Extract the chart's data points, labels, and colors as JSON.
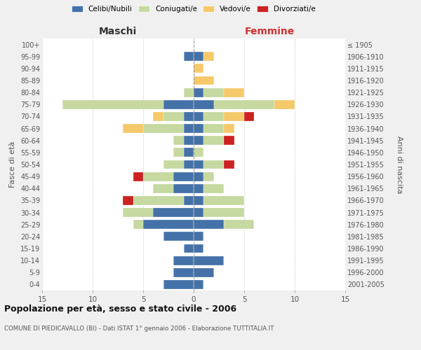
{
  "age_groups": [
    "0-4",
    "5-9",
    "10-14",
    "15-19",
    "20-24",
    "25-29",
    "30-34",
    "35-39",
    "40-44",
    "45-49",
    "50-54",
    "55-59",
    "60-64",
    "65-69",
    "70-74",
    "75-79",
    "80-84",
    "85-89",
    "90-94",
    "95-99",
    "100+"
  ],
  "birth_years": [
    "2001-2005",
    "1996-2000",
    "1991-1995",
    "1986-1990",
    "1981-1985",
    "1976-1980",
    "1971-1975",
    "1966-1970",
    "1961-1965",
    "1956-1960",
    "1951-1955",
    "1946-1950",
    "1941-1945",
    "1936-1940",
    "1931-1935",
    "1926-1930",
    "1921-1925",
    "1916-1920",
    "1911-1915",
    "1906-1910",
    "≤ 1905"
  ],
  "maschi": {
    "celibi": [
      3,
      2,
      2,
      1,
      3,
      5,
      4,
      1,
      2,
      2,
      1,
      1,
      1,
      1,
      1,
      3,
      0,
      0,
      0,
      1,
      0
    ],
    "coniugati": [
      0,
      0,
      0,
      0,
      0,
      1,
      3,
      5,
      2,
      3,
      2,
      1,
      1,
      4,
      2,
      10,
      1,
      0,
      0,
      0,
      0
    ],
    "vedovi": [
      0,
      0,
      0,
      0,
      0,
      0,
      0,
      0,
      0,
      0,
      0,
      0,
      0,
      2,
      1,
      0,
      0,
      0,
      0,
      0,
      0
    ],
    "divorziati": [
      0,
      0,
      0,
      0,
      0,
      0,
      0,
      1,
      0,
      1,
      0,
      0,
      0,
      0,
      0,
      0,
      0,
      0,
      0,
      0,
      0
    ]
  },
  "femmine": {
    "nubili": [
      1,
      2,
      3,
      1,
      1,
      3,
      1,
      1,
      1,
      1,
      1,
      0,
      1,
      1,
      1,
      2,
      1,
      0,
      0,
      1,
      0
    ],
    "coniugate": [
      0,
      0,
      0,
      0,
      0,
      3,
      4,
      4,
      2,
      1,
      2,
      1,
      2,
      2,
      2,
      6,
      2,
      0,
      0,
      0,
      0
    ],
    "vedove": [
      0,
      0,
      0,
      0,
      0,
      0,
      0,
      0,
      0,
      0,
      0,
      0,
      0,
      1,
      2,
      2,
      2,
      2,
      1,
      1,
      0
    ],
    "divorziate": [
      0,
      0,
      0,
      0,
      0,
      0,
      0,
      0,
      0,
      0,
      1,
      0,
      1,
      0,
      1,
      0,
      0,
      0,
      0,
      0,
      0
    ]
  },
  "colors": {
    "celibi": "#4472a8",
    "coniugati": "#c5d9a0",
    "vedovi": "#f5c96a",
    "divorziati": "#cc2222"
  },
  "title": "Popolazione per età, sesso e stato civile - 2006",
  "subtitle": "COMUNE DI PIEDICAVALLO (BI) - Dati ISTAT 1° gennaio 2006 - Elaborazione TUTTITALIA.IT",
  "xlabel_left": "Maschi",
  "xlabel_right": "Femmine",
  "ylabel_left": "Fasce di età",
  "ylabel_right": "Anni di nascita",
  "xlim": 15,
  "background_color": "#f0f0f0",
  "plot_background": "#ffffff",
  "legend_labels": [
    "Celibi/Nubili",
    "Coniugati/e",
    "Vedovi/e",
    "Divorziati/e"
  ]
}
